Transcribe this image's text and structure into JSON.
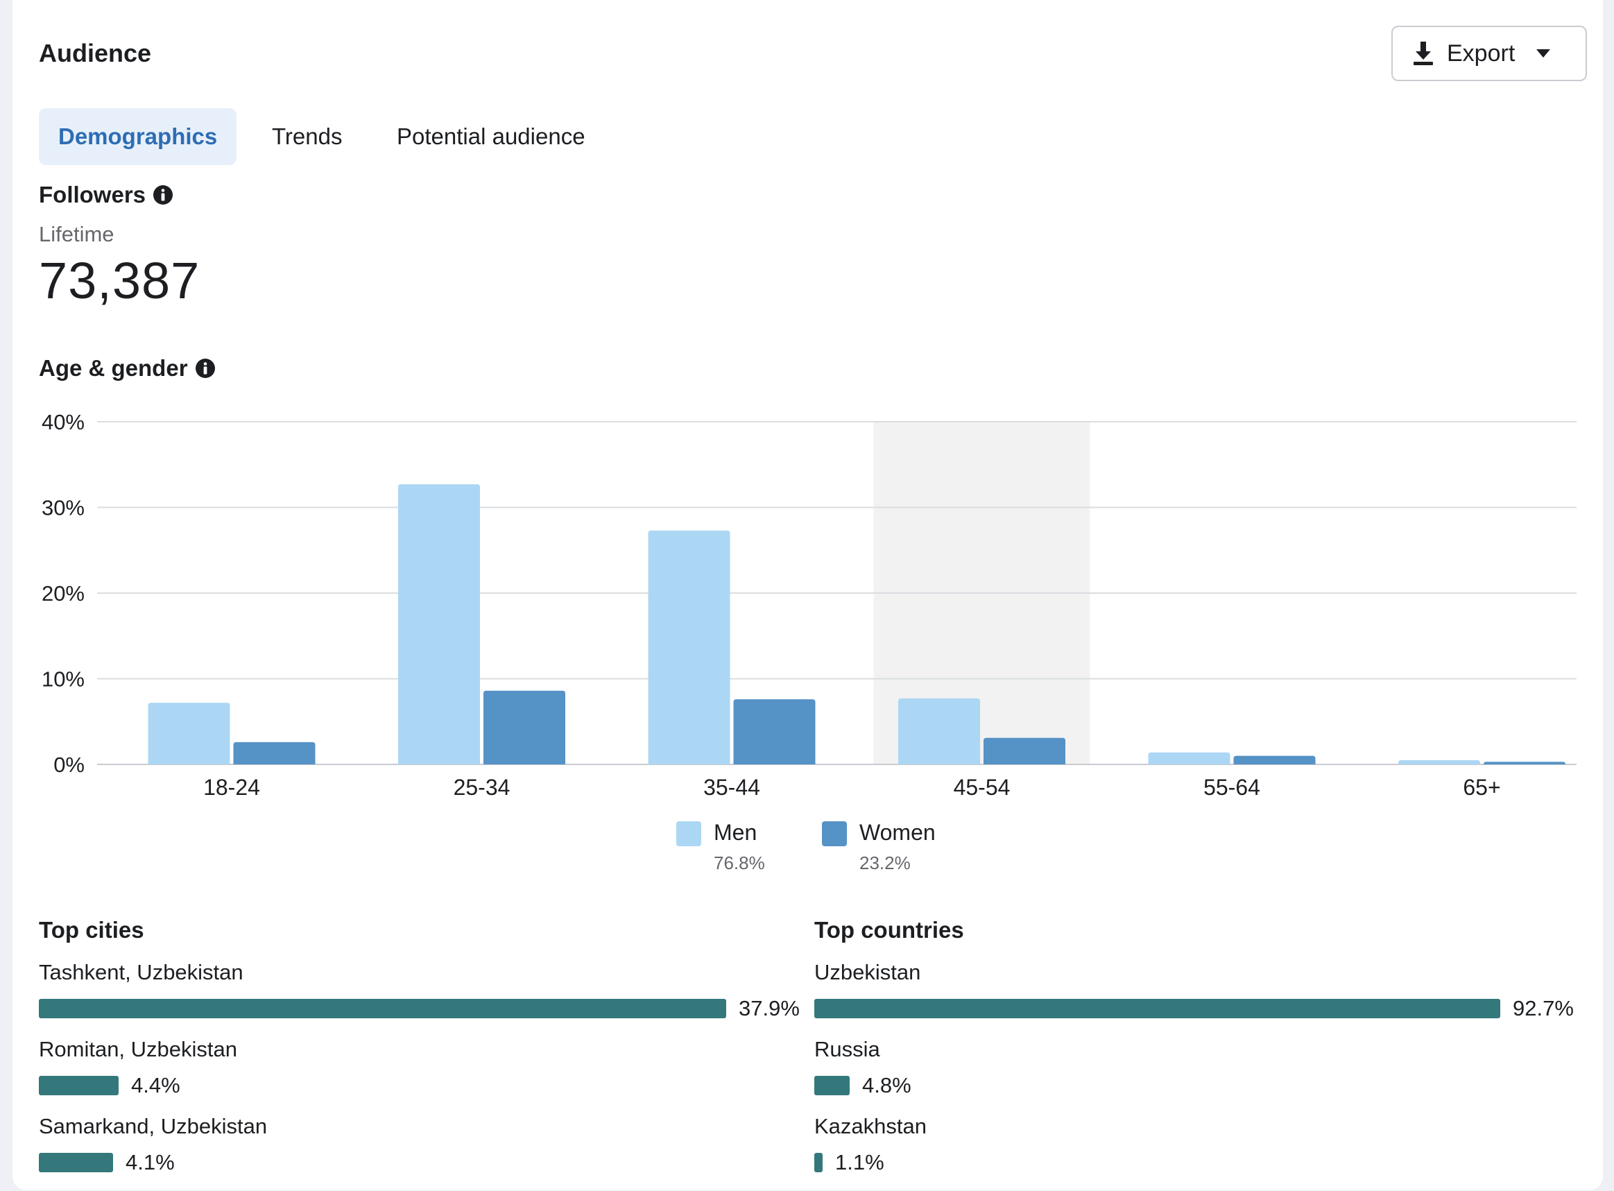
{
  "header": {
    "title": "Audience",
    "export_label": "Export"
  },
  "tabs": [
    {
      "label": "Demographics",
      "active": true
    },
    {
      "label": "Trends",
      "active": false
    },
    {
      "label": "Potential audience",
      "active": false
    }
  ],
  "followers": {
    "label": "Followers",
    "period": "Lifetime",
    "value": "73,387"
  },
  "age_gender": {
    "label": "Age & gender"
  },
  "chart_data": {
    "type": "bar",
    "categories": [
      "18-24",
      "25-34",
      "35-44",
      "45-54",
      "55-64",
      "65+"
    ],
    "series": [
      {
        "name": "Men",
        "values": [
          7.2,
          32.7,
          27.3,
          7.7,
          1.4,
          0.5
        ],
        "color": "#acd7f4"
      },
      {
        "name": "Women",
        "values": [
          2.6,
          8.6,
          7.6,
          3.1,
          1.0,
          0.3
        ],
        "color": "#5592c6"
      }
    ],
    "yticks": [
      "0%",
      "10%",
      "20%",
      "30%",
      "40%"
    ],
    "ylim": [
      0,
      40
    ],
    "highlighted_category": "45-54",
    "legend": [
      {
        "name": "Men",
        "percent": "76.8%"
      },
      {
        "name": "Women",
        "percent": "23.2%"
      }
    ],
    "grid": true,
    "legend_placement": "bottom-center"
  },
  "top_cities": {
    "label": "Top cities",
    "items": [
      {
        "name": "Tashkent, Uzbekistan",
        "percent": "37.9%",
        "value": 37.9
      },
      {
        "name": "Romitan, Uzbekistan",
        "percent": "4.4%",
        "value": 4.4
      },
      {
        "name": "Samarkand, Uzbekistan",
        "percent": "4.1%",
        "value": 4.1
      }
    ]
  },
  "top_countries": {
    "label": "Top countries",
    "items": [
      {
        "name": "Uzbekistan",
        "percent": "92.7%",
        "value": 92.7
      },
      {
        "name": "Russia",
        "percent": "4.8%",
        "value": 4.8
      },
      {
        "name": "Kazakhstan",
        "percent": "1.1%",
        "value": 1.1
      }
    ]
  },
  "colors": {
    "accent": "#2e6db4",
    "location_bar": "#34787b"
  }
}
